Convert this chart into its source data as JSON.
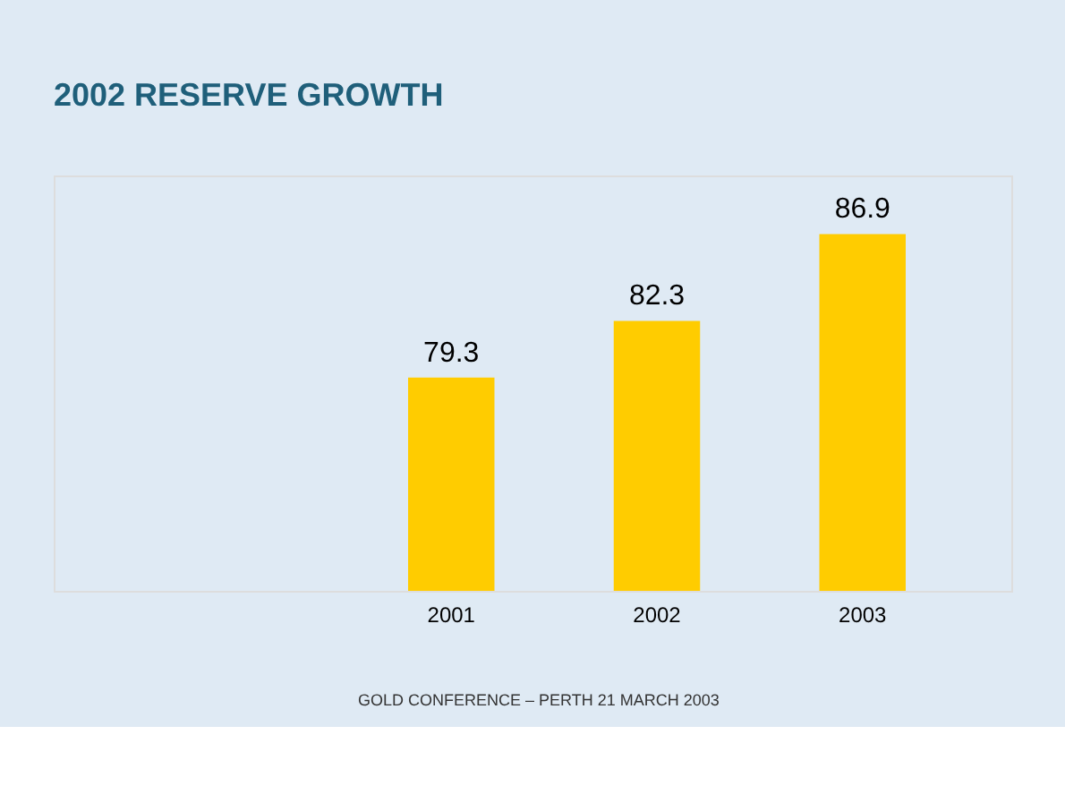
{
  "chart_data": {
    "type": "bar",
    "title": "2002 RESERVE GROWTH",
    "categories": [
      "2001",
      "2002",
      "2003"
    ],
    "values": [
      79.3,
      82.3,
      86.9
    ],
    "color": "#ffcc00",
    "data_labels": true,
    "ylim": [
      68,
      90
    ],
    "tick_labels": "x",
    "grid": false,
    "annotations": [
      "GOLD CONFERENCE – PERTH 21 MARCH 2003"
    ]
  }
}
